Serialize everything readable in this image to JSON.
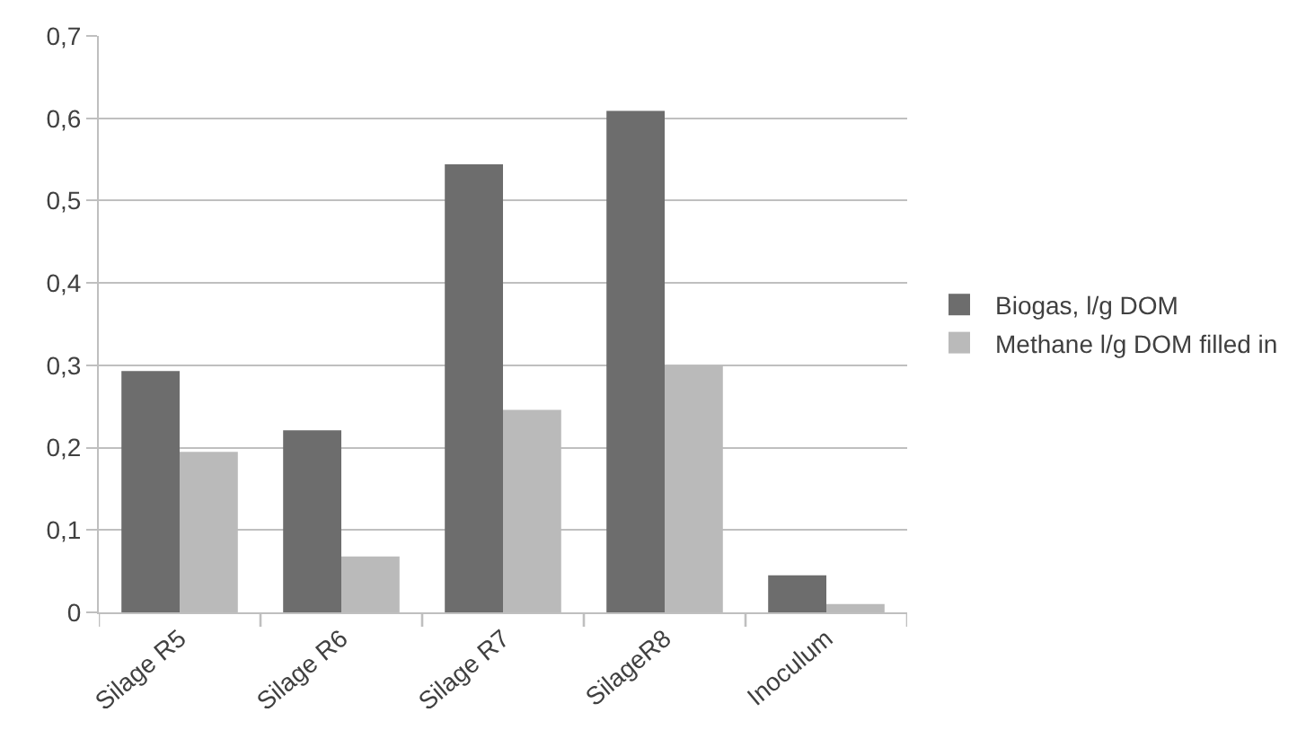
{
  "chart_data": {
    "type": "bar",
    "categories": [
      "Silage R5",
      "Silage R6",
      "Silage R7",
      "SilageR8",
      "Inoculum"
    ],
    "series": [
      {
        "name": "Biogas, l/g DOM",
        "color": "#6d6d6d",
        "values": [
          0.293,
          0.221,
          0.544,
          0.609,
          0.045
        ]
      },
      {
        "name": "Methane l/g DOM filled in",
        "color": "#bababa",
        "values": [
          0.195,
          0.068,
          0.246,
          0.3,
          0.01
        ]
      }
    ],
    "ylim": [
      0,
      0.7
    ],
    "yticks": [
      0,
      {
        "value": 0.1,
        "label": "0,1"
      },
      {
        "value": 0.2,
        "label": "0,2"
      },
      {
        "value": 0.3,
        "label": "0,3"
      },
      {
        "value": 0.4,
        "label": "0,4"
      },
      {
        "value": 0.5,
        "label": "0,5"
      },
      {
        "value": 0.6,
        "label": "0,6"
      },
      {
        "value": 0.7,
        "label": "0,7"
      }
    ],
    "grid": "y",
    "legend": "right"
  }
}
